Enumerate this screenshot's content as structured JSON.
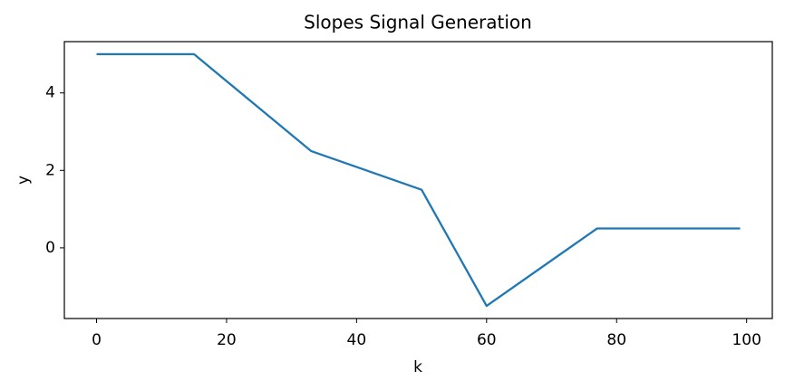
{
  "chart_data": {
    "type": "line",
    "title": "Slopes Signal Generation",
    "xlabel": "k",
    "ylabel": "y",
    "x": [
      0,
      15,
      33,
      50,
      60,
      77,
      99
    ],
    "series": [
      {
        "color": "#1f77b4",
        "values": [
          5,
          5,
          2.5,
          1.5,
          -1.5,
          0.5,
          0.5
        ]
      }
    ],
    "xlim": [
      -4.95,
      103.95
    ],
    "ylim": [
      -1.825,
      5.325
    ],
    "xticks": [
      0,
      20,
      40,
      60,
      80,
      100
    ],
    "yticks": [
      0,
      2,
      4
    ],
    "grid": false
  }
}
